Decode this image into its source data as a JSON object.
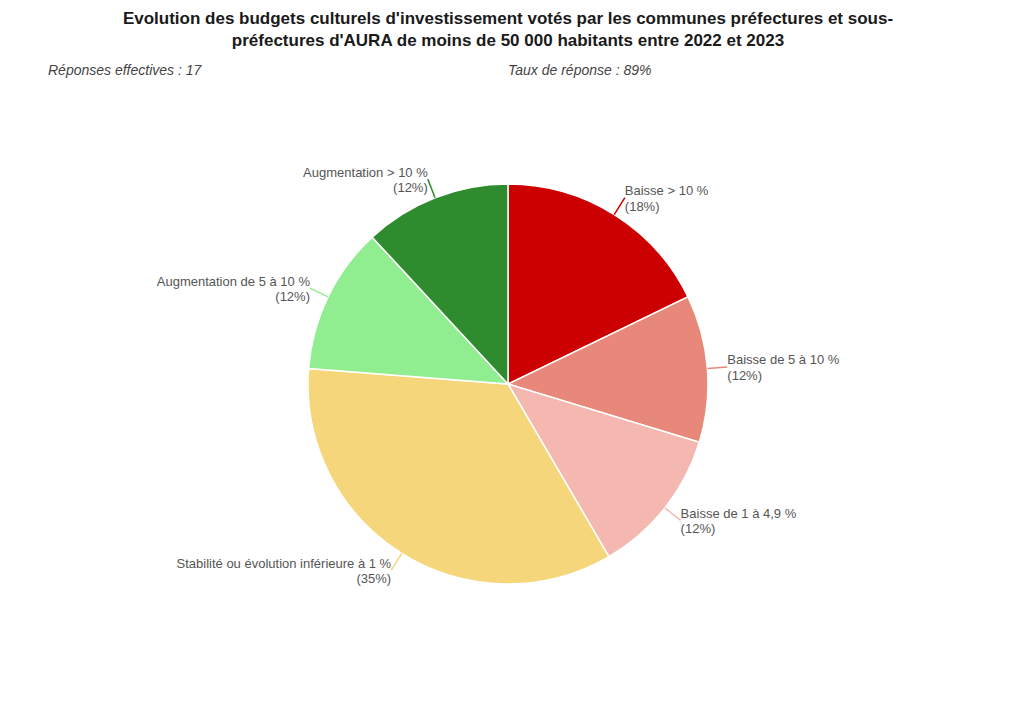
{
  "chart_data": {
    "type": "pie",
    "title": [
      "Evolution des budgets culturels d'investissement votés par les communes préfectures et sous-",
      "préfectures d'AURA de moins de 50 000 habitants entre 2022 et 2023"
    ],
    "subtitle": [
      "Réponses effectives : 17",
      "Taux de réponse : 89%"
    ],
    "categories": [
      "Baisse > 10 %",
      "Baisse de 5 à 10 %",
      "Baisse de 1 à 4,9 %",
      "Stabilité ou évolution inférieure à 1 %",
      "Augmentation de 5 à 10 %",
      "Augmentation > 10 %"
    ],
    "values": [
      18,
      12,
      12,
      35,
      12,
      12
    ],
    "value_labels": [
      "(18%)",
      "(12%)",
      "(12%)",
      "(35%)",
      "(12%)",
      "(12%)"
    ],
    "colors": [
      "#cc0000",
      "#e8887a",
      "#f5b8b0",
      "#f5d67a",
      "#90ee90",
      "#2e8b2e"
    ],
    "data_labels": true
  }
}
